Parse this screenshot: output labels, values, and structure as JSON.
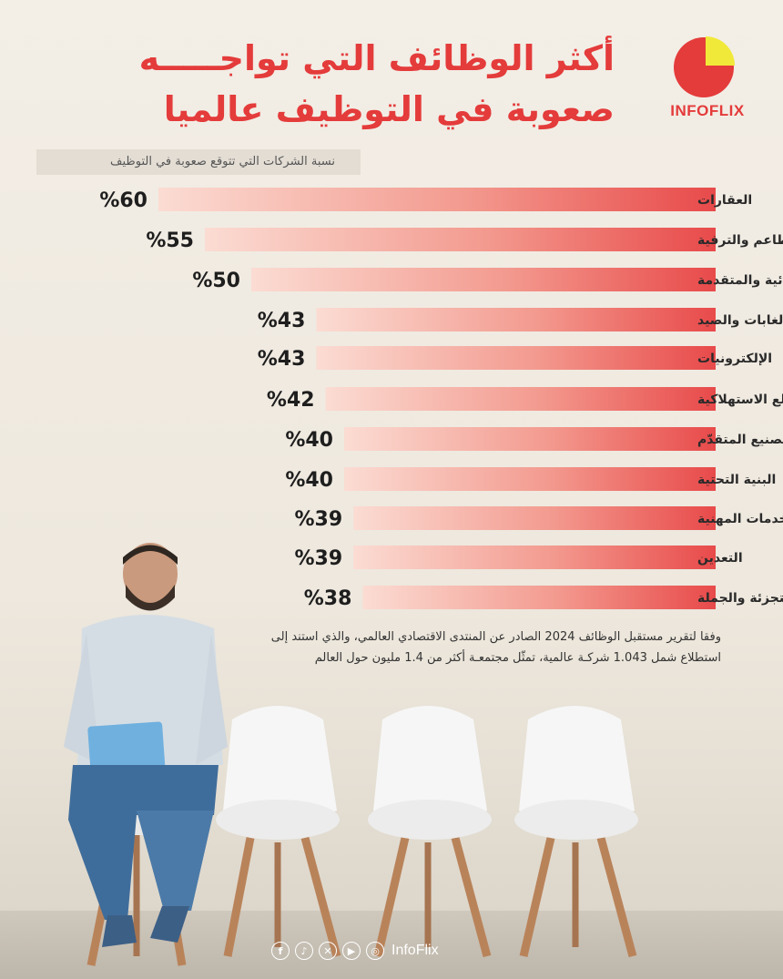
{
  "title_line1": "أكثر الوظائف التي تواجـــــه",
  "title_line2": "صعوبة في التوظيف عالميا",
  "logo_text": "INFOFLIX",
  "subtitle": "نسبة الشركات التي تتوقع صعوبة في التوظيف",
  "chart_data": {
    "type": "bar",
    "orientation": "horizontal",
    "categories": [
      "العقارات",
      "الضيافة والمطاعم والترفية",
      "المواد الكيميائية والمتقدمة",
      "الزراعة والغابات والصيد",
      "الإلكترونيات",
      "السلع الاستهلاكية",
      "التصنيع المتقدّم",
      "البنية التحتية",
      "الخدمات المهنية",
      "التعدين",
      "تجارة التجزئة والجملة"
    ],
    "values": [
      60,
      55,
      50,
      43,
      43,
      42,
      40,
      40,
      39,
      39,
      38
    ],
    "value_labels": [
      "%60",
      "%55",
      "%50",
      "%43",
      "%43",
      "%42",
      "%40",
      "%40",
      "%39",
      "%39",
      "%38"
    ],
    "xlim": [
      0,
      100
    ],
    "bar_color": "#e84a4a"
  },
  "note": "وفقا لتقرير مستقبل الوظائف 2024 الصادر عن المنتدى الاقتصادي العالمي، والذي استند إلى استطلاع شمل 1.043 شركـة عالمية، تمثّل مجتمعـة أكثر من 1.4 مليون حول العالم",
  "social": {
    "icons": [
      "facebook-icon",
      "tiktok-icon",
      "x-icon",
      "youtube-icon",
      "instagram-icon"
    ],
    "handle": "InfoFlix"
  },
  "colors": {
    "accent": "#e43b3b",
    "logo_yellow": "#f1e93a"
  }
}
